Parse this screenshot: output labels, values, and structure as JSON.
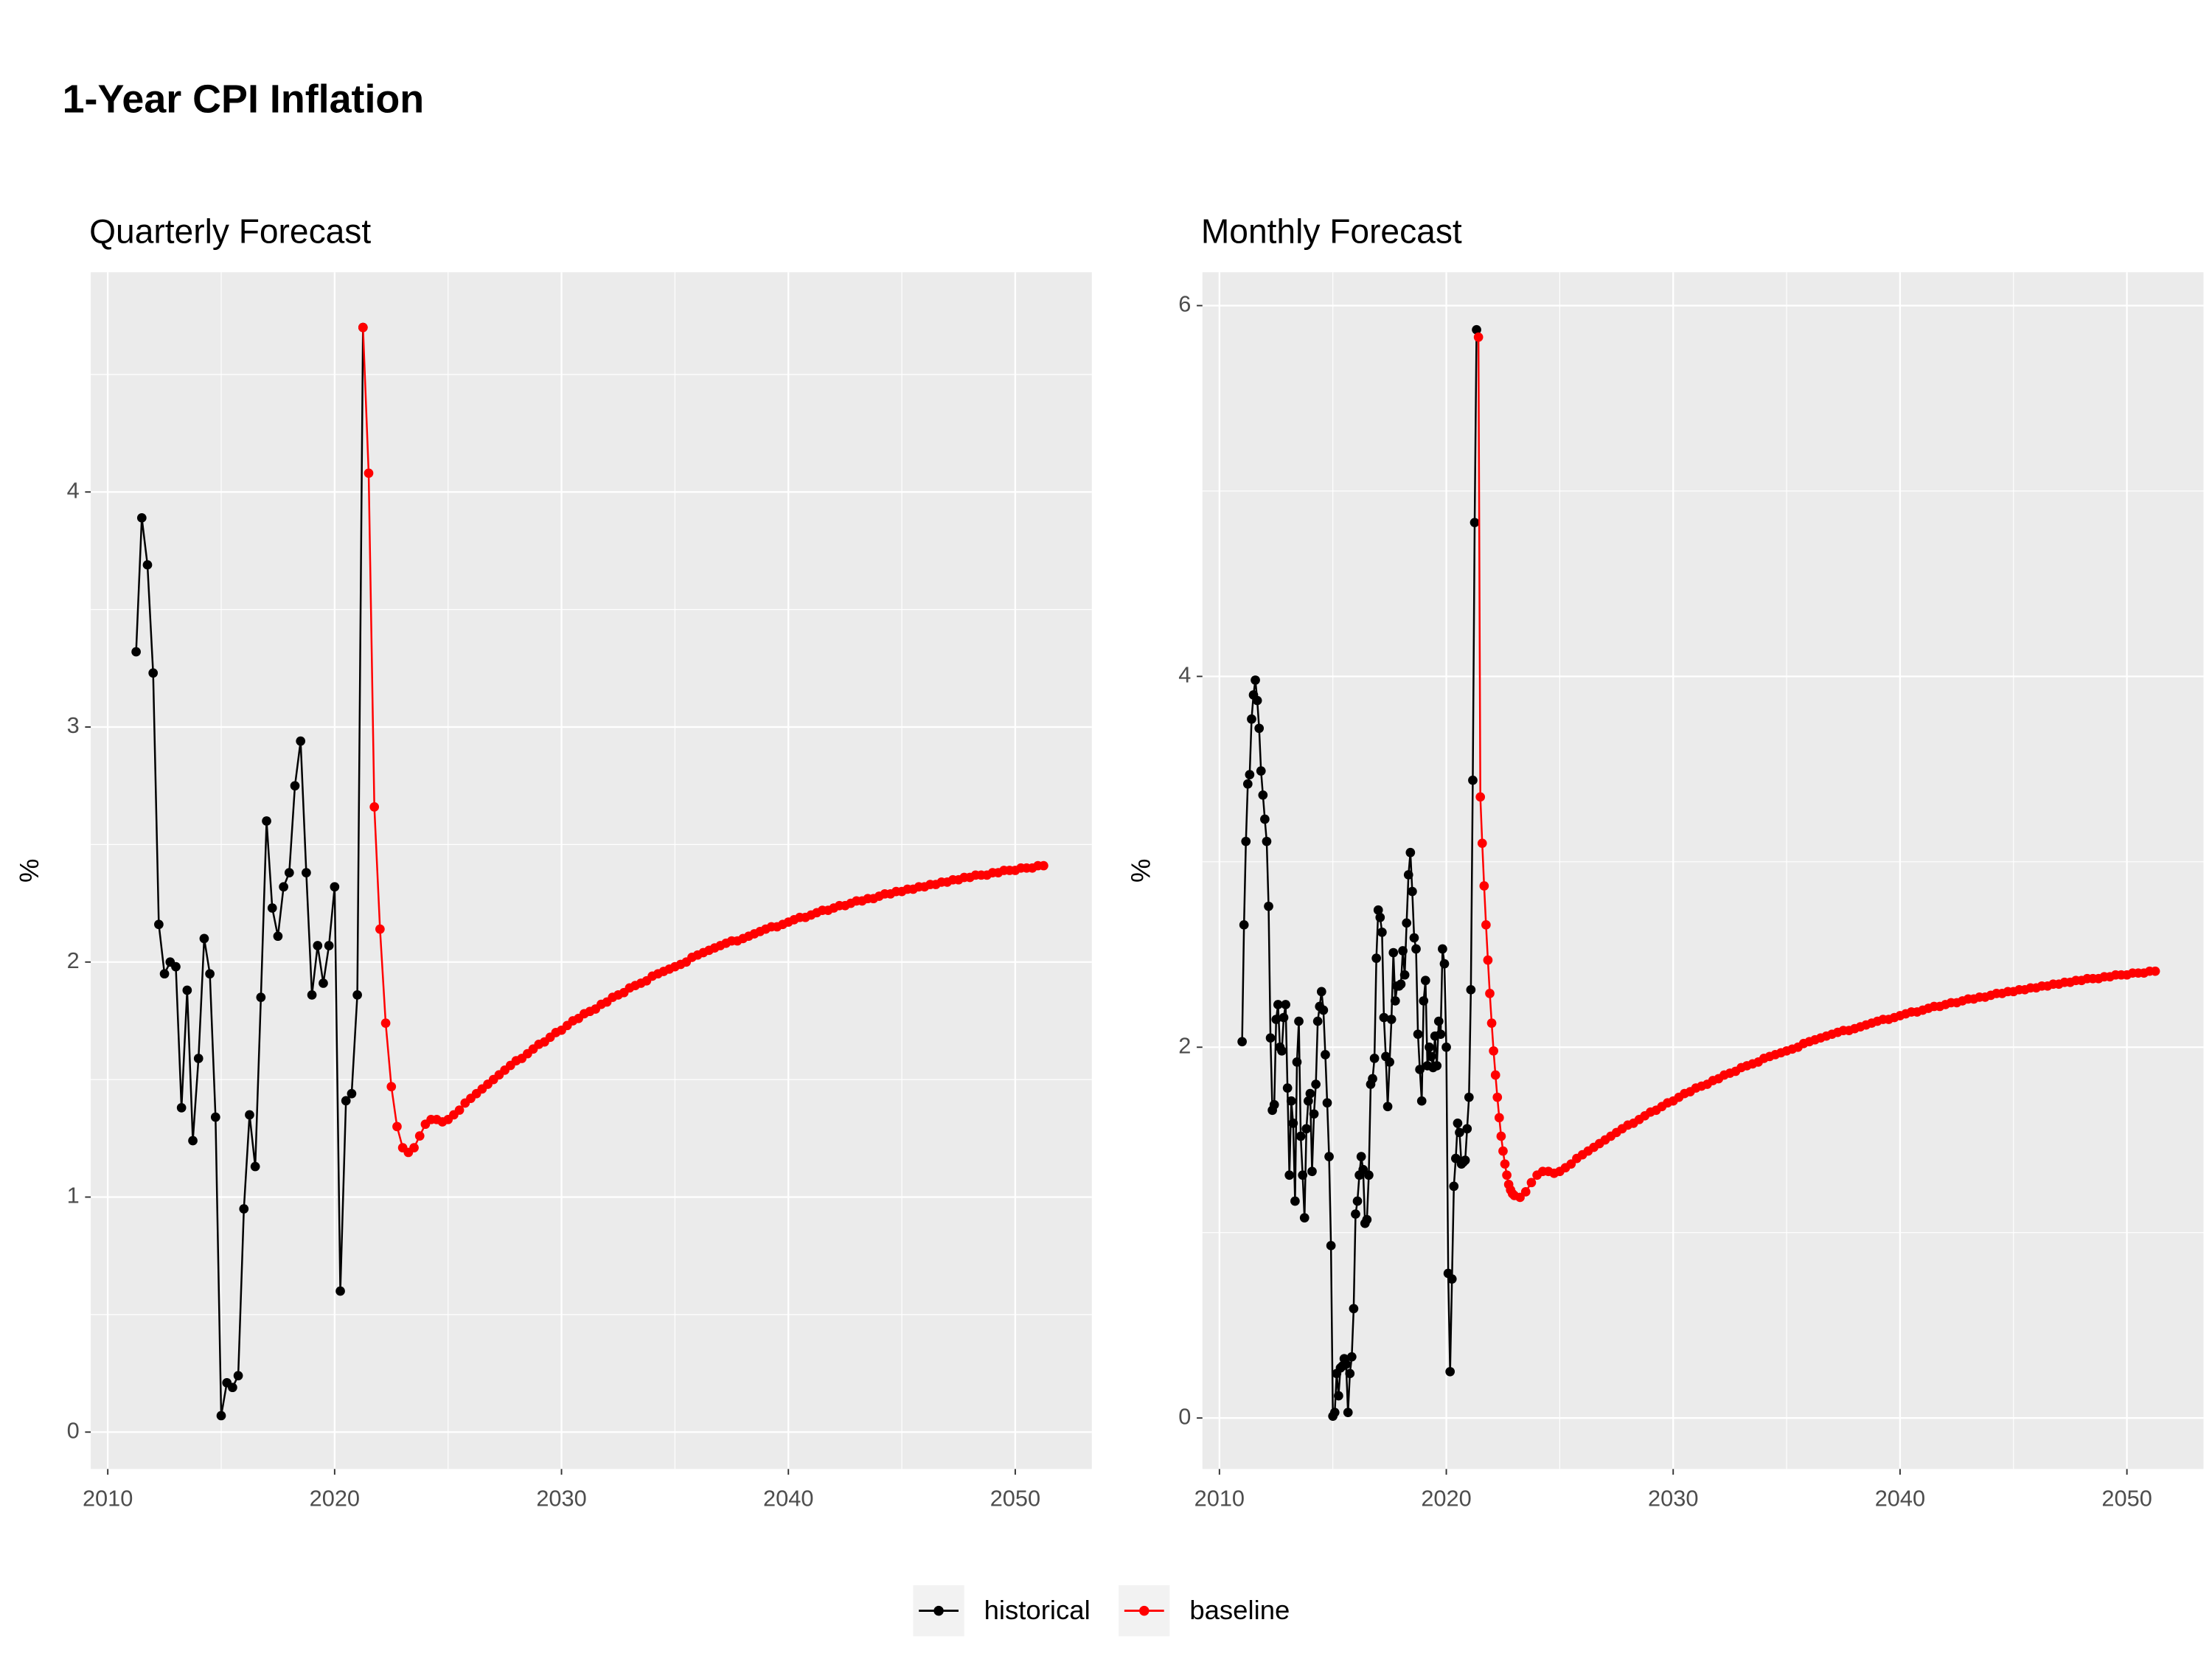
{
  "title": "1-Year CPI Inflation",
  "legend": "bottom",
  "chart_data": [
    {
      "type": "line",
      "title": "Quarterly Forecast",
      "y_label": "%",
      "xlim": [
        2009.25,
        2053.375
      ],
      "ylim": [
        -0.157,
        4.935
      ],
      "xticks": [
        2010,
        2020,
        2030,
        2040,
        2050
      ],
      "yticks": [
        0,
        1,
        2,
        3,
        4
      ],
      "grid": true,
      "series": [
        {
          "name": "historical",
          "color": "#000000",
          "x": [
            2011.25,
            2011.5,
            2011.75,
            2012,
            2012.25,
            2012.5,
            2012.75,
            2013,
            2013.25,
            2013.5,
            2013.75,
            2014,
            2014.25,
            2014.5,
            2014.75,
            2015,
            2015.25,
            2015.5,
            2015.75,
            2016,
            2016.25,
            2016.5,
            2016.75,
            2017,
            2017.25,
            2017.5,
            2017.75,
            2018,
            2018.25,
            2018.5,
            2018.75,
            2019,
            2019.25,
            2019.5,
            2019.75,
            2020,
            2020.25,
            2020.5,
            2020.75,
            2021,
            2021.25
          ],
          "values": [
            3.32,
            3.89,
            3.69,
            3.23,
            2.16,
            1.95,
            2.0,
            1.98,
            1.38,
            1.88,
            1.24,
            1.59,
            2.1,
            1.95,
            1.34,
            0.07,
            0.21,
            0.19,
            0.24,
            0.95,
            1.35,
            1.13,
            1.85,
            2.6,
            2.23,
            2.11,
            2.32,
            2.38,
            2.75,
            2.94,
            2.38,
            1.86,
            2.07,
            1.91,
            2.07,
            2.32,
            0.6,
            1.41,
            1.44,
            1.86,
            4.7
          ]
        },
        {
          "name": "baseline",
          "color": "#ff0000",
          "x": [
            2021.25,
            2021.5,
            2021.75,
            2022,
            2022.25,
            2022.5,
            2022.75,
            2023,
            2023.25,
            2023.5,
            2023.75,
            2024,
            2024.25,
            2024.5,
            2024.75,
            2025,
            2025.25,
            2025.5,
            2025.75,
            2026,
            2026.25,
            2026.5,
            2026.75,
            2027,
            2027.25,
            2027.5,
            2027.75,
            2028,
            2028.25,
            2028.5,
            2028.75,
            2029,
            2029.25,
            2029.5,
            2029.75,
            2030,
            2030.25,
            2030.5,
            2030.75,
            2031,
            2031.25,
            2031.5,
            2031.75,
            2032,
            2032.25,
            2032.5,
            2032.75,
            2033,
            2033.25,
            2033.5,
            2033.75,
            2034,
            2034.25,
            2034.5,
            2034.75,
            2035,
            2035.25,
            2035.5,
            2035.75,
            2036,
            2036.25,
            2036.5,
            2036.75,
            2037,
            2037.25,
            2037.5,
            2037.75,
            2038,
            2038.25,
            2038.5,
            2038.75,
            2039,
            2039.25,
            2039.5,
            2039.75,
            2040,
            2040.25,
            2040.5,
            2040.75,
            2041,
            2041.25,
            2041.5,
            2041.75,
            2042,
            2042.25,
            2042.5,
            2042.75,
            2043,
            2043.25,
            2043.5,
            2043.75,
            2044,
            2044.25,
            2044.5,
            2044.75,
            2045,
            2045.25,
            2045.5,
            2045.75,
            2046,
            2046.25,
            2046.5,
            2046.75,
            2047,
            2047.25,
            2047.5,
            2047.75,
            2048,
            2048.25,
            2048.5,
            2048.75,
            2049,
            2049.25,
            2049.5,
            2049.75,
            2050,
            2050.25,
            2050.5,
            2050.75,
            2051,
            2051.25
          ],
          "values": [
            4.7,
            4.08,
            2.66,
            2.14,
            1.74,
            1.47,
            1.3,
            1.21,
            1.19,
            1.21,
            1.26,
            1.31,
            1.33,
            1.33,
            1.32,
            1.33,
            1.35,
            1.37,
            1.4,
            1.42,
            1.44,
            1.46,
            1.48,
            1.5,
            1.52,
            1.54,
            1.56,
            1.58,
            1.59,
            1.61,
            1.63,
            1.65,
            1.66,
            1.68,
            1.7,
            1.71,
            1.73,
            1.75,
            1.76,
            1.78,
            1.79,
            1.8,
            1.82,
            1.83,
            1.85,
            1.86,
            1.87,
            1.89,
            1.9,
            1.91,
            1.92,
            1.94,
            1.95,
            1.96,
            1.97,
            1.98,
            1.99,
            2.0,
            2.02,
            2.03,
            2.04,
            2.05,
            2.06,
            2.07,
            2.08,
            2.09,
            2.09,
            2.1,
            2.11,
            2.12,
            2.13,
            2.14,
            2.15,
            2.15,
            2.16,
            2.17,
            2.18,
            2.19,
            2.19,
            2.2,
            2.21,
            2.22,
            2.22,
            2.23,
            2.24,
            2.24,
            2.25,
            2.26,
            2.26,
            2.27,
            2.27,
            2.28,
            2.29,
            2.29,
            2.3,
            2.3,
            2.31,
            2.31,
            2.32,
            2.32,
            2.33,
            2.33,
            2.34,
            2.34,
            2.35,
            2.35,
            2.36,
            2.36,
            2.37,
            2.37,
            2.37,
            2.38,
            2.38,
            2.39,
            2.39,
            2.39,
            2.4,
            2.4,
            2.4,
            2.41,
            2.41
          ]
        }
      ]
    },
    {
      "type": "line",
      "title": "Monthly Forecast",
      "y_label": "%",
      "xlim": [
        2009.25,
        2053.375
      ],
      "ylim": [
        -0.275,
        6.18
      ],
      "xticks": [
        2010,
        2020,
        2030,
        2040,
        2050
      ],
      "yticks": [
        0,
        2,
        4,
        6
      ],
      "grid": true,
      "series": [
        {
          "name": "historical",
          "color": "#000000",
          "x": [
            2011,
            2011.083,
            2011.167,
            2011.25,
            2011.333,
            2011.417,
            2011.5,
            2011.583,
            2011.667,
            2011.75,
            2011.833,
            2011.917,
            2012,
            2012.083,
            2012.167,
            2012.25,
            2012.333,
            2012.417,
            2012.5,
            2012.583,
            2012.667,
            2012.75,
            2012.833,
            2012.917,
            2013,
            2013.083,
            2013.167,
            2013.25,
            2013.333,
            2013.417,
            2013.5,
            2013.583,
            2013.667,
            2013.75,
            2013.833,
            2013.917,
            2014,
            2014.083,
            2014.167,
            2014.25,
            2014.333,
            2014.417,
            2014.5,
            2014.583,
            2014.667,
            2014.75,
            2014.833,
            2014.917,
            2015,
            2015.083,
            2015.167,
            2015.25,
            2015.333,
            2015.417,
            2015.5,
            2015.583,
            2015.667,
            2015.75,
            2015.833,
            2015.917,
            2016,
            2016.083,
            2016.167,
            2016.25,
            2016.333,
            2016.417,
            2016.5,
            2016.583,
            2016.667,
            2016.75,
            2016.833,
            2016.917,
            2017,
            2017.083,
            2017.167,
            2017.25,
            2017.333,
            2017.417,
            2017.5,
            2017.583,
            2017.667,
            2017.75,
            2017.833,
            2017.917,
            2018,
            2018.083,
            2018.167,
            2018.25,
            2018.333,
            2018.417,
            2018.5,
            2018.583,
            2018.667,
            2018.75,
            2018.833,
            2018.917,
            2019,
            2019.083,
            2019.167,
            2019.25,
            2019.333,
            2019.417,
            2019.5,
            2019.583,
            2019.667,
            2019.75,
            2019.833,
            2019.917,
            2020,
            2020.083,
            2020.167,
            2020.25,
            2020.333,
            2020.417,
            2020.5,
            2020.583,
            2020.667,
            2020.75,
            2020.833,
            2020.917,
            2021,
            2021.083,
            2021.167,
            2021.25,
            2021.333
          ],
          "values": [
            2.03,
            2.66,
            3.11,
            3.42,
            3.47,
            3.77,
            3.9,
            3.98,
            3.87,
            3.72,
            3.49,
            3.36,
            3.23,
            3.11,
            2.76,
            2.05,
            1.66,
            1.69,
            2.15,
            2.23,
            2.0,
            1.98,
            2.16,
            2.23,
            1.78,
            1.31,
            1.71,
            1.59,
            1.17,
            1.92,
            2.14,
            1.52,
            1.31,
            1.08,
            1.56,
            1.71,
            1.75,
            1.33,
            1.64,
            1.8,
            2.14,
            2.22,
            2.3,
            2.2,
            1.96,
            1.7,
            1.41,
            0.93,
            0.01,
            0.03,
            0.24,
            0.12,
            0.27,
            0.28,
            0.32,
            0.29,
            0.03,
            0.24,
            0.33,
            0.59,
            1.1,
            1.17,
            1.31,
            1.41,
            1.34,
            1.05,
            1.07,
            1.31,
            1.8,
            1.83,
            1.94,
            2.48,
            2.74,
            2.7,
            2.62,
            2.16,
            1.95,
            1.68,
            1.92,
            2.15,
            2.51,
            2.25,
            2.33,
            2.33,
            2.34,
            2.52,
            2.39,
            2.67,
            2.93,
            3.05,
            2.84,
            2.59,
            2.53,
            2.07,
            1.88,
            1.71,
            2.25,
            2.36,
            1.9,
            2.0,
            1.95,
            1.89,
            2.06,
            1.9,
            2.14,
            2.07,
            2.53,
            2.45,
            2.0,
            0.78,
            0.25,
            0.75,
            1.25,
            1.4,
            1.59,
            1.54,
            1.37,
            1.38,
            1.39,
            1.56,
            1.73,
            2.31,
            3.44,
            4.83,
            5.87
          ]
        },
        {
          "name": "baseline",
          "color": "#ff0000",
          "x": [
            2021.417,
            2021.5,
            2021.583,
            2021.667,
            2021.75,
            2021.833,
            2021.917,
            2022,
            2022.083,
            2022.167,
            2022.25,
            2022.333,
            2022.417,
            2022.5,
            2022.583,
            2022.667,
            2022.75,
            2022.833,
            2022.917,
            2023,
            2023.25,
            2023.5,
            2023.75,
            2024,
            2024.25,
            2024.5,
            2024.75,
            2025,
            2025.25,
            2025.5,
            2025.75,
            2026,
            2026.25,
            2026.5,
            2026.75,
            2027,
            2027.25,
            2027.5,
            2027.75,
            2028,
            2028.25,
            2028.5,
            2028.75,
            2029,
            2029.25,
            2029.5,
            2029.75,
            2030,
            2030.25,
            2030.5,
            2030.75,
            2031,
            2031.25,
            2031.5,
            2031.75,
            2032,
            2032.25,
            2032.5,
            2032.75,
            2033,
            2033.25,
            2033.5,
            2033.75,
            2034,
            2034.25,
            2034.5,
            2034.75,
            2035,
            2035.25,
            2035.5,
            2035.75,
            2036,
            2036.25,
            2036.5,
            2036.75,
            2037,
            2037.25,
            2037.5,
            2037.75,
            2038,
            2038.25,
            2038.5,
            2038.75,
            2039,
            2039.25,
            2039.5,
            2039.75,
            2040,
            2040.25,
            2040.5,
            2040.75,
            2041,
            2041.25,
            2041.5,
            2041.75,
            2042,
            2042.25,
            2042.5,
            2042.75,
            2043,
            2043.25,
            2043.5,
            2043.75,
            2044,
            2044.25,
            2044.5,
            2044.75,
            2045,
            2045.25,
            2045.5,
            2045.75,
            2046,
            2046.25,
            2046.5,
            2046.75,
            2047,
            2047.25,
            2047.5,
            2047.75,
            2048,
            2048.25,
            2048.5,
            2048.75,
            2049,
            2049.25,
            2049.5,
            2049.75,
            2050,
            2050.25,
            2050.5,
            2050.75,
            2051,
            2051.25
          ],
          "values": [
            5.83,
            3.35,
            3.1,
            2.87,
            2.66,
            2.47,
            2.29,
            2.13,
            1.98,
            1.85,
            1.73,
            1.62,
            1.52,
            1.44,
            1.37,
            1.31,
            1.26,
            1.23,
            1.21,
            1.2,
            1.19,
            1.22,
            1.27,
            1.31,
            1.33,
            1.33,
            1.32,
            1.33,
            1.35,
            1.37,
            1.4,
            1.42,
            1.44,
            1.46,
            1.48,
            1.5,
            1.52,
            1.54,
            1.56,
            1.58,
            1.59,
            1.61,
            1.63,
            1.65,
            1.66,
            1.68,
            1.7,
            1.71,
            1.73,
            1.75,
            1.76,
            1.78,
            1.79,
            1.8,
            1.82,
            1.83,
            1.85,
            1.86,
            1.87,
            1.89,
            1.9,
            1.91,
            1.92,
            1.94,
            1.95,
            1.96,
            1.97,
            1.98,
            1.99,
            2.0,
            2.02,
            2.03,
            2.04,
            2.05,
            2.06,
            2.07,
            2.08,
            2.09,
            2.09,
            2.1,
            2.11,
            2.12,
            2.13,
            2.14,
            2.15,
            2.15,
            2.16,
            2.17,
            2.18,
            2.19,
            2.19,
            2.2,
            2.21,
            2.22,
            2.22,
            2.23,
            2.24,
            2.24,
            2.25,
            2.26,
            2.26,
            2.27,
            2.27,
            2.28,
            2.29,
            2.29,
            2.3,
            2.3,
            2.31,
            2.31,
            2.32,
            2.32,
            2.33,
            2.33,
            2.34,
            2.34,
            2.35,
            2.35,
            2.36,
            2.36,
            2.37,
            2.37,
            2.37,
            2.38,
            2.38,
            2.39,
            2.39,
            2.39,
            2.4,
            2.4,
            2.4,
            2.41,
            2.41
          ]
        }
      ]
    }
  ]
}
